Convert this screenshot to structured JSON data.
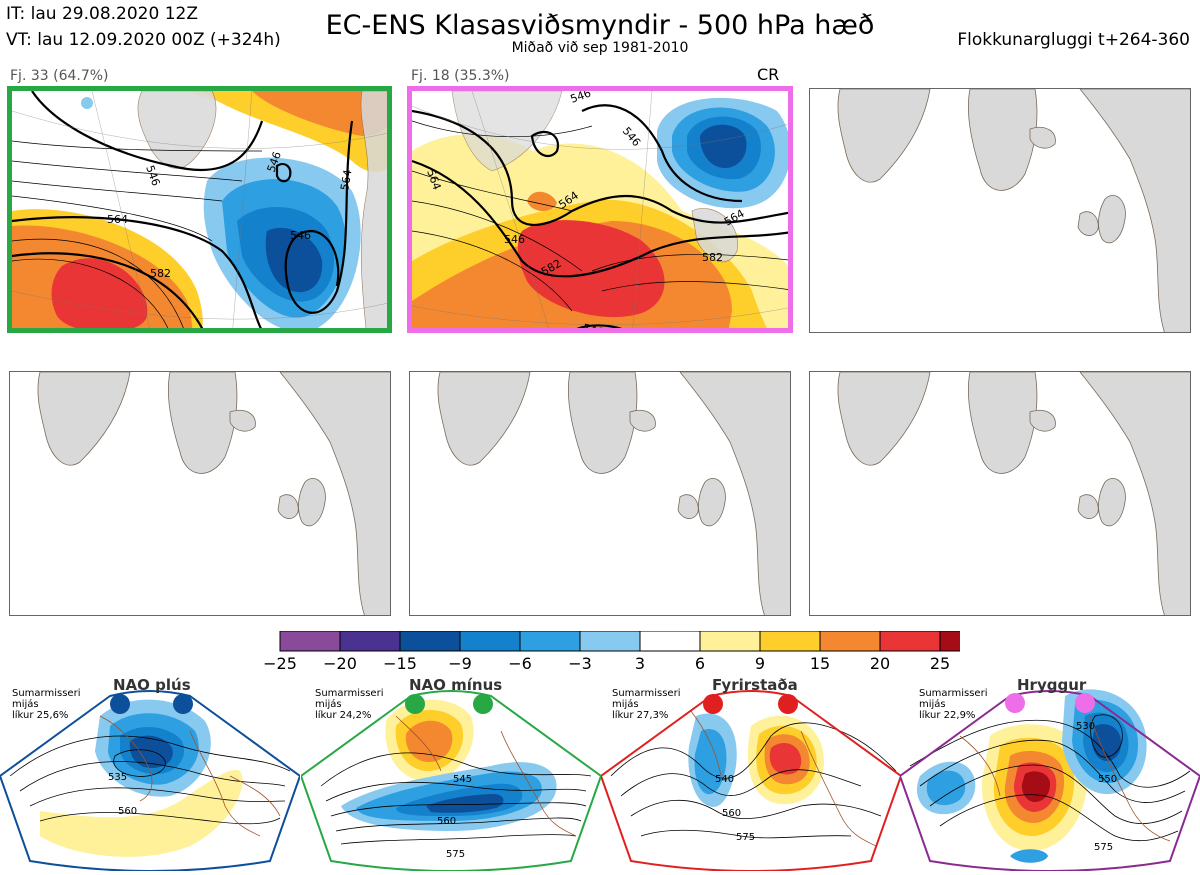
{
  "header": {
    "it_line": "IT: lau 29.08.2020 12Z",
    "vt_line": "VT: lau 12.09.2020 00Z  (+324h)",
    "title": "EC-ENS Klasasviðsmyndir - 500 hPa hæð",
    "subtitle": "Miðað við sep 1981-2010",
    "window": "Flokkunargluggi t+264-360"
  },
  "panels": [
    {
      "label": "Fj. 33 (64.7%)",
      "frame_color": "#27a845",
      "contours": [
        "546",
        "546",
        "546",
        "564",
        "564",
        "582"
      ]
    },
    {
      "label": "Fj. 18 (35.3%)",
      "frame_color": "#ee6ee9",
      "tag": "CR",
      "contours": [
        "546",
        "546",
        "546",
        "564",
        "564",
        "564",
        "582",
        "582",
        "546"
      ]
    },
    {
      "label": ""
    },
    {
      "label": ""
    },
    {
      "label": ""
    },
    {
      "label": ""
    }
  ],
  "legend": {
    "ticks": [
      "−25",
      "−20",
      "−15",
      "−9",
      "−6",
      "−3",
      "3",
      "6",
      "9",
      "15",
      "20",
      "25"
    ],
    "colors": [
      "#8a4a9a",
      "#4a3290",
      "#0c4f9a",
      "#1481cc",
      "#2e9fe0",
      "#88c9ef",
      "#ffffff",
      "#fff19a",
      "#fece2a",
      "#f38830",
      "#e93535",
      "#a50c16"
    ]
  },
  "regimes": [
    {
      "name": "NAO plús",
      "frame_color": "#0c4f9a",
      "dot_color": "#0c4f9a",
      "note": [
        "Sumarmisseri",
        "mijás",
        "líkur 25,6%"
      ],
      "contours": [
        "535",
        "560"
      ]
    },
    {
      "name": "NAO mínus",
      "frame_color": "#27a845",
      "dot_color": "#27a845",
      "note": [
        "Sumarmisseri",
        "mijás",
        "líkur 24,2%"
      ],
      "contours": [
        "545",
        "560",
        "575"
      ]
    },
    {
      "name": "Fyrirstaða",
      "frame_color": "#e02020",
      "dot_color": "#e02020",
      "note": [
        "Sumarmisseri",
        "mijás",
        "líkur 27,3%"
      ],
      "contours": [
        "540",
        "560",
        "575"
      ]
    },
    {
      "name": "Hryggur",
      "frame_color": "#8a2a90",
      "dot_color": "#ee6ee9",
      "note": [
        "Sumarmisseri",
        "mijás",
        "líkur 22,9%"
      ],
      "contours": [
        "530",
        "550",
        "575"
      ]
    }
  ]
}
